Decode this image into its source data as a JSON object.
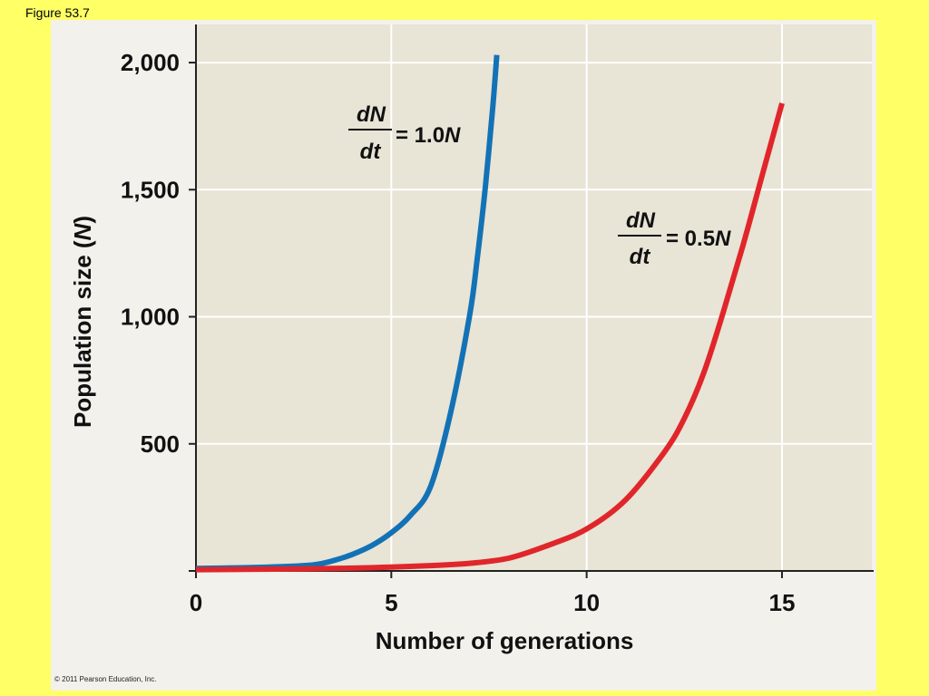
{
  "figure_label": "Figure 53.7",
  "copyright": "© 2011 Pearson Education, Inc.",
  "colors": {
    "background": "#ffff66",
    "plot_area": "#e8e4d6",
    "panel": "#f3f1ec",
    "blue_curve": "#1372b5",
    "red_curve": "#e0262b"
  },
  "chart_data": {
    "type": "line",
    "xlabel": "Number of generations",
    "ylabel_main": "Population size (",
    "ylabel_var": "N",
    "ylabel_end": ")",
    "xlim": [
      0,
      17.3
    ],
    "ylim": [
      0,
      2150
    ],
    "xticks": [
      0,
      5,
      10,
      15
    ],
    "xtick_labels": [
      "0",
      "5",
      "10",
      "15"
    ],
    "yticks": [
      500,
      1000,
      1500,
      2000
    ],
    "ytick_labels": [
      "500",
      "1,000",
      "1,500",
      "2,000"
    ],
    "grid": true,
    "series": [
      {
        "name_num": "dN",
        "name_den": "dt",
        "name_rhs": "= 1.0",
        "name_var": "N",
        "color": "#1372b5",
        "r": 1.0,
        "x": [
          0,
          1,
          2,
          3,
          3.5,
          4,
          4.5,
          5,
          5.5,
          6,
          6.5,
          7,
          7.2,
          7.4,
          7.6,
          7.7
        ],
        "y": [
          10,
          12,
          16,
          24,
          40,
          65,
          100,
          150,
          220,
          330,
          610,
          1000,
          1230,
          1500,
          1830,
          2030
        ]
      },
      {
        "name_num": "dN",
        "name_den": "dt",
        "name_rhs": "= 0.5",
        "name_var": "N",
        "color": "#e0262b",
        "r": 0.5,
        "x": [
          0,
          2,
          4,
          5,
          6,
          7,
          8,
          9,
          10,
          11,
          12,
          12.5,
          13,
          13.5,
          14,
          14.5,
          15
        ],
        "y": [
          5,
          7,
          11,
          15,
          21,
          30,
          50,
          100,
          165,
          280,
          470,
          600,
          780,
          1020,
          1280,
          1560,
          1840
        ]
      }
    ]
  }
}
